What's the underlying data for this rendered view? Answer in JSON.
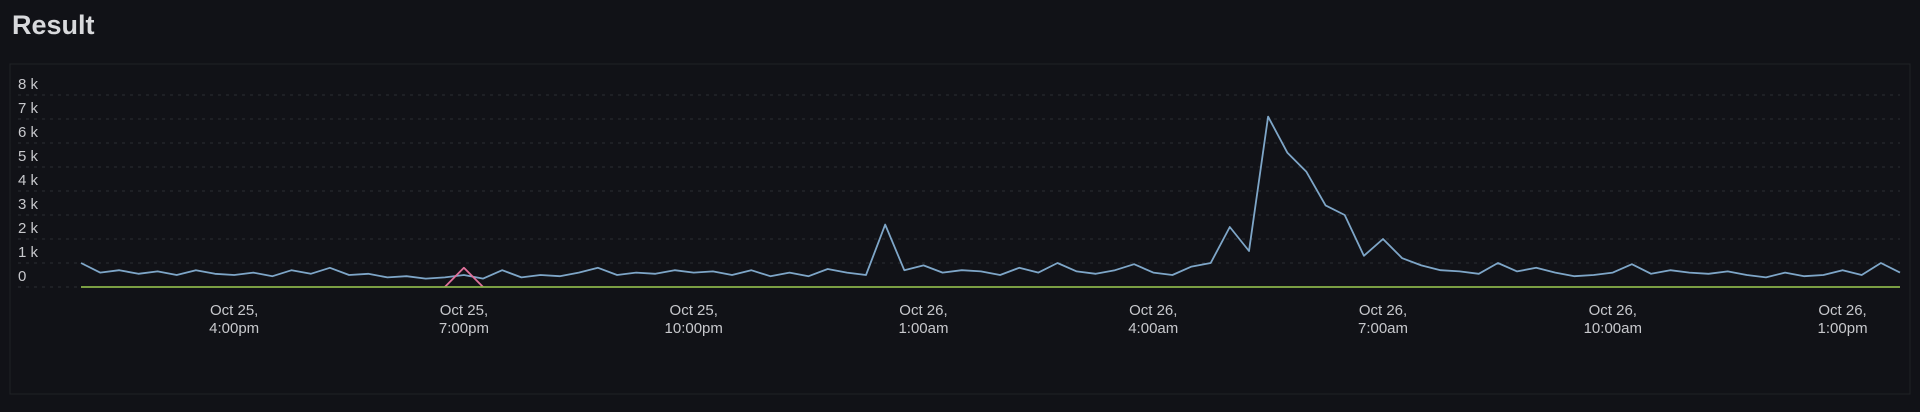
{
  "header": {
    "title": "Result"
  },
  "chart_data": {
    "type": "line",
    "x": [
      "Oct 25, 2:00pm",
      "Oct 25, 2:15pm",
      "Oct 25, 2:30pm",
      "Oct 25, 2:45pm",
      "Oct 25, 3:00pm",
      "Oct 25, 3:15pm",
      "Oct 25, 3:30pm",
      "Oct 25, 3:45pm",
      "Oct 25, 4:00pm",
      "Oct 25, 4:15pm",
      "Oct 25, 4:30pm",
      "Oct 25, 4:45pm",
      "Oct 25, 5:00pm",
      "Oct 25, 5:15pm",
      "Oct 25, 5:30pm",
      "Oct 25, 5:45pm",
      "Oct 25, 6:00pm",
      "Oct 25, 6:15pm",
      "Oct 25, 6:30pm",
      "Oct 25, 6:45pm",
      "Oct 25, 7:00pm",
      "Oct 25, 7:15pm",
      "Oct 25, 7:30pm",
      "Oct 25, 7:45pm",
      "Oct 25, 8:00pm",
      "Oct 25, 8:15pm",
      "Oct 25, 8:30pm",
      "Oct 25, 8:45pm",
      "Oct 25, 9:00pm",
      "Oct 25, 9:15pm",
      "Oct 25, 9:30pm",
      "Oct 25, 9:45pm",
      "Oct 25, 10:00pm",
      "Oct 25, 10:15pm",
      "Oct 25, 10:30pm",
      "Oct 25, 10:45pm",
      "Oct 25, 11:00pm",
      "Oct 25, 11:15pm",
      "Oct 25, 11:30pm",
      "Oct 25, 11:45pm",
      "Oct 26, 12:00am",
      "Oct 26, 12:15am",
      "Oct 26, 12:30am",
      "Oct 26, 12:45am",
      "Oct 26, 1:00am",
      "Oct 26, 1:15am",
      "Oct 26, 1:30am",
      "Oct 26, 1:45am",
      "Oct 26, 2:00am",
      "Oct 26, 2:15am",
      "Oct 26, 2:30am",
      "Oct 26, 2:45am",
      "Oct 26, 3:00am",
      "Oct 26, 3:15am",
      "Oct 26, 3:30am",
      "Oct 26, 3:45am",
      "Oct 26, 4:00am",
      "Oct 26, 4:15am",
      "Oct 26, 4:30am",
      "Oct 26, 4:45am",
      "Oct 26, 5:00am",
      "Oct 26, 5:15am",
      "Oct 26, 5:30am",
      "Oct 26, 5:45am",
      "Oct 26, 6:00am",
      "Oct 26, 6:15am",
      "Oct 26, 6:30am",
      "Oct 26, 6:45am",
      "Oct 26, 7:00am",
      "Oct 26, 7:15am",
      "Oct 26, 7:30am",
      "Oct 26, 7:45am",
      "Oct 26, 8:00am",
      "Oct 26, 8:15am",
      "Oct 26, 8:30am",
      "Oct 26, 8:45am",
      "Oct 26, 9:00am",
      "Oct 26, 9:15am",
      "Oct 26, 9:30am",
      "Oct 26, 9:45am",
      "Oct 26, 10:00am",
      "Oct 26, 10:15am",
      "Oct 26, 10:30am",
      "Oct 26, 10:45am",
      "Oct 26, 11:00am",
      "Oct 26, 11:15am",
      "Oct 26, 11:30am",
      "Oct 26, 11:45am",
      "Oct 26, 12:00pm",
      "Oct 26, 12:15pm",
      "Oct 26, 12:30pm",
      "Oct 26, 12:45pm",
      "Oct 26, 1:00pm",
      "Oct 26, 1:15pm",
      "Oct 26, 1:30pm",
      "Oct 26, 1:45pm"
    ],
    "series": [
      {
        "color": "#7ea6c8",
        "values": [
          1000,
          600,
          700,
          550,
          650,
          500,
          700,
          550,
          500,
          600,
          450,
          700,
          550,
          800,
          500,
          550,
          400,
          450,
          350,
          400,
          500,
          350,
          700,
          400,
          500,
          450,
          600,
          800,
          500,
          600,
          550,
          700,
          600,
          650,
          500,
          700,
          450,
          600,
          450,
          750,
          600,
          500,
          2600,
          700,
          900,
          600,
          700,
          650,
          500,
          800,
          600,
          1000,
          650,
          550,
          700,
          950,
          600,
          500,
          850,
          1000,
          2500,
          1500,
          7100,
          5600,
          4800,
          3400,
          3000,
          1300,
          2000,
          1200,
          900,
          700,
          650,
          550,
          1000,
          650,
          800,
          600,
          450,
          500,
          600,
          950,
          550,
          700,
          600,
          550,
          650,
          500,
          400,
          600,
          450,
          500,
          700,
          500,
          1000,
          600
        ]
      },
      {
        "color": "#e0719b",
        "values": [
          null,
          null,
          null,
          null,
          null,
          null,
          null,
          null,
          null,
          null,
          null,
          null,
          null,
          null,
          null,
          null,
          null,
          null,
          null,
          0,
          800,
          0,
          null,
          null,
          null,
          null,
          null,
          null,
          null,
          null,
          null,
          null,
          null,
          null,
          null,
          null,
          null,
          null,
          null,
          null,
          null,
          null,
          null,
          null,
          null,
          null,
          null,
          null,
          null,
          null,
          null,
          null,
          null,
          null,
          null,
          null,
          null,
          null,
          null,
          null,
          null,
          null,
          null,
          null,
          null,
          null,
          null,
          null,
          null,
          null,
          null,
          null,
          null,
          null,
          null,
          null,
          null,
          null,
          null,
          null,
          null,
          null,
          null,
          null,
          null,
          null,
          null,
          null,
          null,
          null,
          null,
          null,
          null,
          null,
          null,
          null
        ]
      },
      {
        "color": "#8ab34a",
        "values": [
          0,
          0,
          0,
          0,
          0,
          0,
          0,
          0,
          0,
          0,
          0,
          0,
          0,
          0,
          0,
          0,
          0,
          0,
          0,
          0,
          0,
          0,
          0,
          0,
          0,
          0,
          0,
          0,
          0,
          0,
          0,
          0,
          0,
          0,
          0,
          0,
          0,
          0,
          0,
          0,
          0,
          0,
          0,
          0,
          0,
          0,
          0,
          0,
          0,
          0,
          0,
          0,
          0,
          0,
          0,
          0,
          0,
          0,
          0,
          0,
          0,
          0,
          0,
          0,
          0,
          0,
          0,
          0,
          0,
          0,
          0,
          0,
          0,
          0,
          0,
          0,
          0,
          0,
          0,
          0,
          0,
          0,
          0,
          0,
          0,
          0,
          0,
          0,
          0,
          0,
          0,
          0,
          0,
          0,
          0,
          0
        ]
      }
    ],
    "ylim": [
      0,
      8000
    ],
    "yticks": [
      0,
      {
        "value": 1000,
        "label": "1 k"
      },
      {
        "value": 2000,
        "label": "2 k"
      },
      {
        "value": 3000,
        "label": "3 k"
      },
      {
        "value": 4000,
        "label": "4 k"
      },
      {
        "value": 5000,
        "label": "5 k"
      },
      {
        "value": 6000,
        "label": "6 k"
      },
      {
        "value": 7000,
        "label": "7 k"
      },
      {
        "value": 8000,
        "label": "8 k"
      }
    ],
    "xticks": [
      {
        "value": "Oct 25, 4:00pm",
        "label": "Oct 25, 4:00pm"
      },
      {
        "value": "Oct 25, 7:00pm",
        "label": "Oct 25, 7:00pm"
      },
      {
        "value": "Oct 25, 10:00pm",
        "label": "Oct 25, 10:00pm"
      },
      {
        "value": "Oct 26, 1:00am",
        "label": "Oct 26, 1:00am"
      },
      {
        "value": "Oct 26, 4:00am",
        "label": "Oct 26, 4:00am"
      },
      {
        "value": "Oct 26, 7:00am",
        "label": "Oct 26, 7:00am"
      },
      {
        "value": "Oct 26, 10:00am",
        "label": "Oct 26, 10:00am"
      },
      {
        "value": "Oct 26, 1:00pm",
        "label": "Oct 26, 1:00pm"
      }
    ],
    "grid": true
  }
}
